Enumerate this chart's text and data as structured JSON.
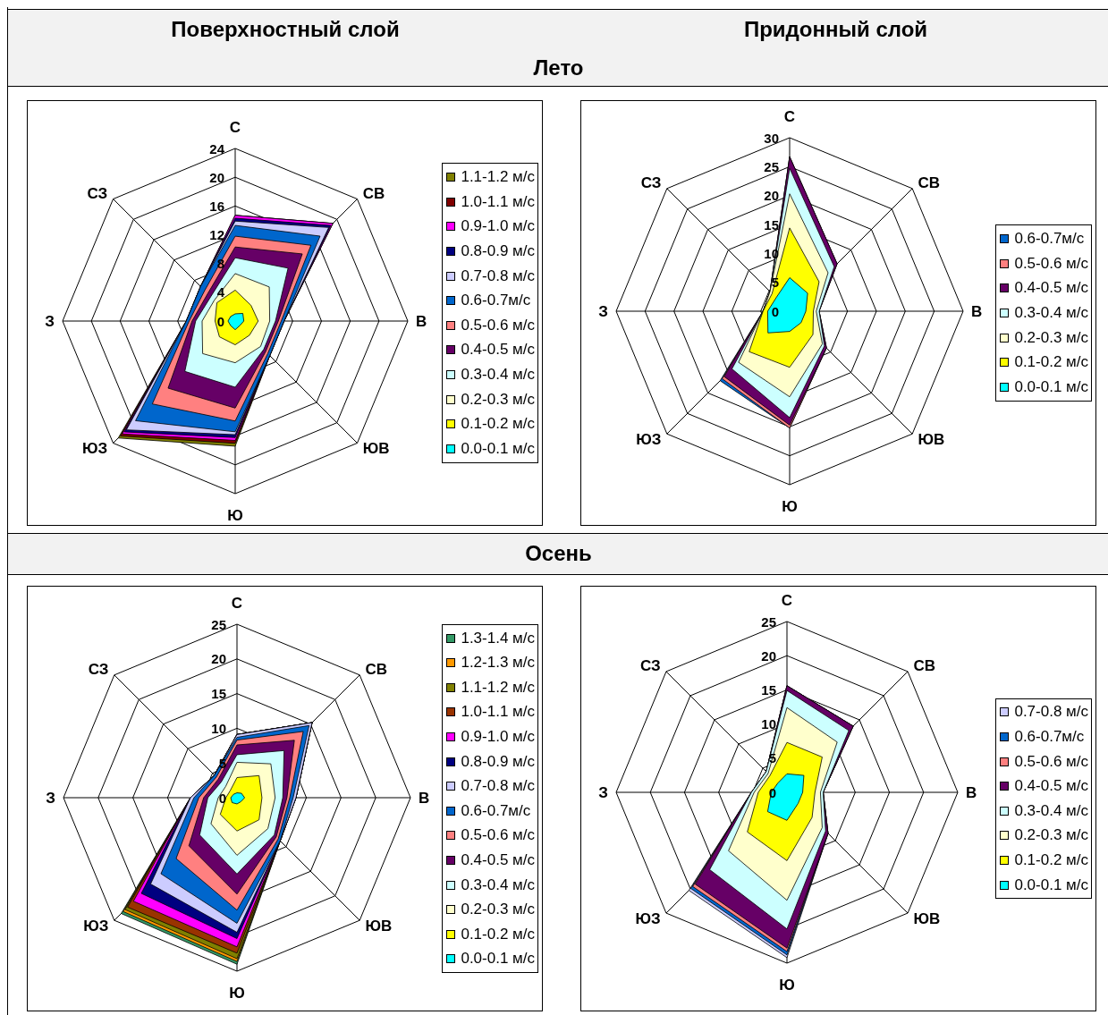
{
  "chart_data": [
    {
      "type": "radar",
      "title": "Поверхностный слой",
      "subtitle": "Лето",
      "categories": [
        "С",
        "СВ",
        "В",
        "ЮВ",
        "Ю",
        "ЮЗ",
        "З",
        "СЗ"
      ],
      "ylim": [
        0,
        24
      ],
      "yticks": [
        0,
        4,
        8,
        12,
        16,
        20,
        24
      ],
      "grid": true,
      "legend": "right",
      "series": [
        {
          "name": "1.1-1.2 м/с",
          "color": "#808000",
          "values": [
            14.7,
            19.2,
            6.8,
            6.8,
            17.4,
            23,
            6.8,
            6.8
          ]
        },
        {
          "name": "1.0-1.1 м/с",
          "color": "#800000",
          "values": [
            14.7,
            19.2,
            6.8,
            6.8,
            17,
            22.6,
            6.8,
            6.8
          ]
        },
        {
          "name": "0.9-1.0 м/с",
          "color": "#ff00ff",
          "values": [
            14.7,
            19.2,
            6.8,
            6.8,
            16.6,
            22.2,
            6.8,
            6.8
          ]
        },
        {
          "name": "0.8-0.9 м/с",
          "color": "#000080",
          "values": [
            14.3,
            18.8,
            6.8,
            6.8,
            16.2,
            21.8,
            6.8,
            6.8
          ]
        },
        {
          "name": "0.7-0.8 м/с",
          "color": "#ccccff",
          "values": [
            13.9,
            18.4,
            6.8,
            6.8,
            15.8,
            21.4,
            6.8,
            6.8
          ]
        },
        {
          "name": "0.6-0.7м/с",
          "color": "#0066cc",
          "values": [
            13.3,
            16.7,
            6.8,
            6.8,
            15.4,
            19.6,
            6.8,
            6.8
          ]
        },
        {
          "name": "0.5-0.6 м/с",
          "color": "#ff8080",
          "values": [
            11.8,
            14.9,
            6.4,
            6.4,
            13.9,
            16.3,
            6.4,
            6
          ]
        },
        {
          "name": "0.4-0.5 м/с",
          "color": "#660066",
          "values": [
            10.3,
            13.2,
            6,
            6,
            12.1,
            13.2,
            6,
            5.4
          ]
        },
        {
          "name": "0.3-0.4 м/с",
          "color": "#ccffff",
          "values": [
            8.8,
            10.4,
            5.6,
            5.6,
            9.2,
            9.9,
            5.5,
            4.8
          ]
        },
        {
          "name": "0.2-0.3 м/с",
          "color": "#ffffcc",
          "values": [
            6.6,
            6.7,
            4.8,
            5,
            5.8,
            6.4,
            4.6,
            4.1
          ]
        },
        {
          "name": "0.1-0.2 м/с",
          "color": "#ffff00",
          "values": [
            4.3,
            3.1,
            3.2,
            2.8,
            3.3,
            3.1,
            2.8,
            3.6
          ]
        },
        {
          "name": "0.0-0.1 м/с",
          "color": "#00ffff",
          "values": [
            1,
            1.5,
            1.2,
            0.9,
            1.2,
            0.9,
            1,
            0.9
          ]
        }
      ]
    },
    {
      "type": "radar",
      "title": "Придонный слой",
      "categories": [
        "С",
        "СВ",
        "В",
        "ЮВ",
        "Ю",
        "ЮЗ",
        "З",
        "СЗ"
      ],
      "ylim": [
        0,
        30
      ],
      "yticks": [
        0,
        5,
        10,
        15,
        20,
        25,
        30
      ],
      "grid": true,
      "legend": "right",
      "series": [
        {
          "name": "0.6-0.7м/с",
          "color": "#0066cc",
          "values": [
            26.7,
            11.6,
            5.1,
            9,
            20.2,
            17,
            4.6,
            4.8
          ]
        },
        {
          "name": "0.5-0.6 м/с",
          "color": "#ff8080",
          "values": [
            26.7,
            11.6,
            5.1,
            9,
            20.2,
            16.5,
            4.6,
            4.8
          ]
        },
        {
          "name": "0.4-0.5 м/с",
          "color": "#660066",
          "values": [
            26.7,
            11.6,
            5.1,
            9,
            19.7,
            16,
            4.6,
            4.8
          ]
        },
        {
          "name": "0.3-0.4 м/с",
          "color": "#ccffff",
          "values": [
            24.7,
            10.9,
            5.1,
            8.5,
            18.4,
            14.1,
            4.6,
            4.8
          ]
        },
        {
          "name": "0.2-0.3 м/с",
          "color": "#ffffcc",
          "values": [
            20.3,
            9.4,
            4.6,
            8,
            14.8,
            12.5,
            4.6,
            4.8
          ]
        },
        {
          "name": "0.1-0.2 м/с",
          "color": "#ffff00",
          "values": [
            14.4,
            7.2,
            4.1,
            5.7,
            9.7,
            9.9,
            4.6,
            4.3
          ]
        },
        {
          "name": "0.0-0.1 м/с",
          "color": "#00ffff",
          "values": [
            5.8,
            4.4,
            2.8,
            2.8,
            3.5,
            5.3,
            3.8,
            3.3
          ]
        }
      ]
    },
    {
      "type": "radar",
      "subtitle": "Осень",
      "categories": [
        "С",
        "СВ",
        "В",
        "ЮВ",
        "Ю",
        "ЮЗ",
        "З",
        "СЗ"
      ],
      "ylim": [
        0,
        25
      ],
      "yticks": [
        0,
        5,
        10,
        15,
        20,
        25
      ],
      "grid": true,
      "legend": "right",
      "series": [
        {
          "name": "1.3-1.4 м/с",
          "color": "#339966",
          "values": [
            9.1,
            15.3,
            8.5,
            8.8,
            24,
            23.6,
            6.7,
            4.6
          ]
        },
        {
          "name": "1.2-1.3 м/с",
          "color": "#ff9900",
          "values": [
            9.1,
            15.3,
            8.5,
            8.8,
            23.6,
            23.2,
            6.7,
            4.6
          ]
        },
        {
          "name": "1.1-1.2 м/с",
          "color": "#808000",
          "values": [
            9.1,
            15.3,
            8.5,
            8.8,
            23.2,
            22.8,
            6.7,
            4.6
          ]
        },
        {
          "name": "1.0-1.1 м/с",
          "color": "#993300",
          "values": [
            9.1,
            15.3,
            8.5,
            8.8,
            22.4,
            22.3,
            6.7,
            4.6
          ]
        },
        {
          "name": "0.9-1.0 м/с",
          "color": "#ff00ff",
          "values": [
            9.1,
            15.3,
            8.5,
            8.8,
            21.5,
            21.1,
            6.7,
            4.6
          ]
        },
        {
          "name": "0.8-0.9 м/с",
          "color": "#000080",
          "values": [
            9.1,
            15.3,
            8.5,
            8.8,
            20.3,
            19.5,
            6.7,
            4.6
          ]
        },
        {
          "name": "0.7-0.8 м/с",
          "color": "#ccccff",
          "values": [
            9.1,
            15.3,
            8.5,
            8.8,
            19.4,
            17.6,
            6.7,
            4.6
          ]
        },
        {
          "name": "0.6-0.7м/с",
          "color": "#0066cc",
          "values": [
            8.7,
            14.7,
            8.1,
            8.8,
            18.1,
            15.5,
            6.2,
            4.6
          ]
        },
        {
          "name": "0.5-0.6 м/с",
          "color": "#ff8080",
          "values": [
            8.3,
            13.5,
            7.6,
            8.4,
            16.2,
            12.4,
            5.5,
            4.2
          ]
        },
        {
          "name": "0.4-0.5 м/с",
          "color": "#660066",
          "values": [
            7.6,
            11.7,
            7.2,
            8,
            13.9,
            9.8,
            4.8,
            3.8
          ]
        },
        {
          "name": "0.3-0.4 м/с",
          "color": "#ccffff",
          "values": [
            6.2,
            9.6,
            6.6,
            7.6,
            11,
            7.6,
            4.2,
            3.2
          ]
        },
        {
          "name": "0.2-0.3 м/с",
          "color": "#ffffcc",
          "values": [
            5.1,
            6.9,
            5.5,
            6.3,
            8.3,
            5.3,
            2.7,
            2.3
          ]
        },
        {
          "name": "0.1-0.2 м/с",
          "color": "#ffff00",
          "values": [
            2.9,
            4.5,
            3.6,
            4.5,
            4.8,
            3.4,
            1.6,
            1.4
          ]
        },
        {
          "name": "0.0-0.1 м/с",
          "color": "#00ffff",
          "values": [
            0.7,
            0.9,
            1.1,
            0.8,
            0.9,
            1,
            0.9,
            0.7
          ]
        }
      ]
    },
    {
      "type": "radar",
      "categories": [
        "С",
        "СВ",
        "В",
        "ЮВ",
        "Ю",
        "ЮЗ",
        "З",
        "СЗ"
      ],
      "ylim": [
        0,
        25
      ],
      "yticks": [
        0,
        5,
        10,
        15,
        20,
        25
      ],
      "grid": true,
      "legend": "right",
      "series": [
        {
          "name": "0.7-0.8 м/с",
          "color": "#ccccff",
          "values": [
            15.6,
            13.7,
            5.3,
            8.5,
            24.2,
            20.3,
            5.2,
            4.3
          ]
        },
        {
          "name": "0.6-0.7м/с",
          "color": "#0066cc",
          "values": [
            15.6,
            13.7,
            5.3,
            8.5,
            23.8,
            19.9,
            5.2,
            4.3
          ]
        },
        {
          "name": "0.5-0.6 м/с",
          "color": "#ff8080",
          "values": [
            15.6,
            13.7,
            5.3,
            8.5,
            23.3,
            19.5,
            5.2,
            4.3
          ]
        },
        {
          "name": "0.4-0.5 м/с",
          "color": "#660066",
          "values": [
            15.6,
            13.7,
            5.3,
            8.5,
            22.8,
            19,
            5.2,
            4.3
          ]
        },
        {
          "name": "0.3-0.4 м/с",
          "color": "#ccffff",
          "values": [
            14.9,
            12.8,
            5.3,
            8,
            20,
            16,
            5.2,
            4.3
          ]
        },
        {
          "name": "0.2-0.3 м/с",
          "color": "#ffffcc",
          "values": [
            12.4,
            10.4,
            4.9,
            7.3,
            15.8,
            12.1,
            4.8,
            3.9
          ]
        },
        {
          "name": "0.1-0.2 м/с",
          "color": "#ffff00",
          "values": [
            7.3,
            7.3,
            4.1,
            5.2,
            10,
            8.2,
            4.2,
            3.5
          ]
        },
        {
          "name": "0.0-0.1 м/с",
          "color": "#00ffff",
          "values": [
            2.7,
            3.5,
            2.3,
            2.3,
            4.1,
            4,
            2.3,
            1.9
          ]
        }
      ]
    }
  ]
}
